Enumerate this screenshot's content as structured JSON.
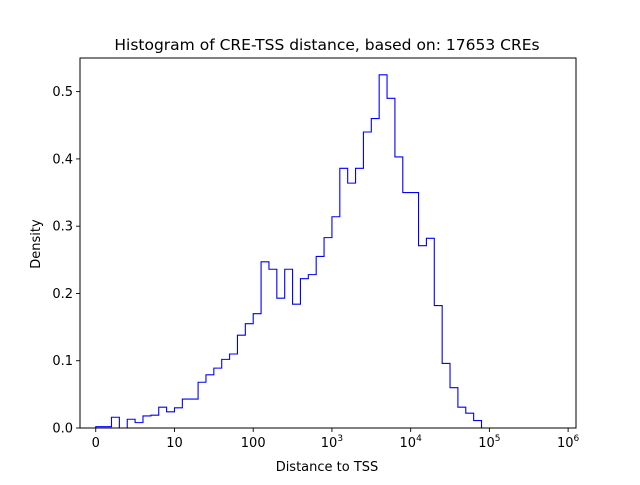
{
  "chart_data": {
    "type": "histogram-step",
    "title": "Histogram of CRE-TSS distance, based on: 17653 CREs",
    "xlabel": "Distance to TSS",
    "ylabel": "Density",
    "x_scale": "symlog",
    "xlim": [
      -0.2,
      6.1
    ],
    "ylim": [
      0,
      0.55
    ],
    "x_ticks": [
      {
        "value": 0,
        "label": "0",
        "sup": ""
      },
      {
        "value": 1,
        "label": "10",
        "sup": ""
      },
      {
        "value": 2,
        "label": "100",
        "sup": ""
      },
      {
        "value": 3,
        "label": "10",
        "sup": "3"
      },
      {
        "value": 4,
        "label": "10",
        "sup": "4"
      },
      {
        "value": 5,
        "label": "10",
        "sup": "5"
      },
      {
        "value": 6,
        "label": "10",
        "sup": "6"
      }
    ],
    "y_ticks": [
      {
        "value": 0.0,
        "label": "0.0"
      },
      {
        "value": 0.1,
        "label": "0.1"
      },
      {
        "value": 0.2,
        "label": "0.2"
      },
      {
        "value": 0.3,
        "label": "0.3"
      },
      {
        "value": 0.4,
        "label": "0.4"
      },
      {
        "value": 0.5,
        "label": "0.5"
      }
    ],
    "line_color": "#0000ff",
    "series": [
      {
        "bin_edges": [
          0.0,
          0.1,
          0.2,
          0.3,
          0.4,
          0.5,
          0.6,
          0.7,
          0.8,
          0.9,
          1.0,
          1.1,
          1.2,
          1.3,
          1.4,
          1.5,
          1.6,
          1.7,
          1.8,
          1.9,
          2.0,
          2.1,
          2.2,
          2.3,
          2.4,
          2.5,
          2.6,
          2.7,
          2.8,
          2.9,
          3.0,
          3.1,
          3.2,
          3.3,
          3.4,
          3.5,
          3.6,
          3.7,
          3.8,
          3.9,
          4.0,
          4.1,
          4.2,
          4.3,
          4.4,
          4.5,
          4.6,
          4.7,
          4.8,
          4.9,
          5.0,
          5.1,
          5.2,
          5.3,
          5.4,
          5.5,
          5.6,
          5.7
        ],
        "density": [
          0.002,
          0.002,
          0.016,
          0.0,
          0.013,
          0.008,
          0.018,
          0.019,
          0.031,
          0.024,
          0.03,
          0.043,
          0.043,
          0.068,
          0.079,
          0.089,
          0.102,
          0.11,
          0.138,
          0.155,
          0.17,
          0.247,
          0.236,
          0.193,
          0.236,
          0.184,
          0.222,
          0.228,
          0.255,
          0.283,
          0.314,
          0.386,
          0.364,
          0.386,
          0.44,
          0.46,
          0.525,
          0.49,
          0.403,
          0.35,
          0.35,
          0.271,
          0.282,
          0.182,
          0.096,
          0.06,
          0.031,
          0.022,
          0.011,
          0.0,
          0.0,
          0.0,
          0.0,
          0.0,
          0.0,
          0.0,
          0.0
        ]
      }
    ]
  }
}
